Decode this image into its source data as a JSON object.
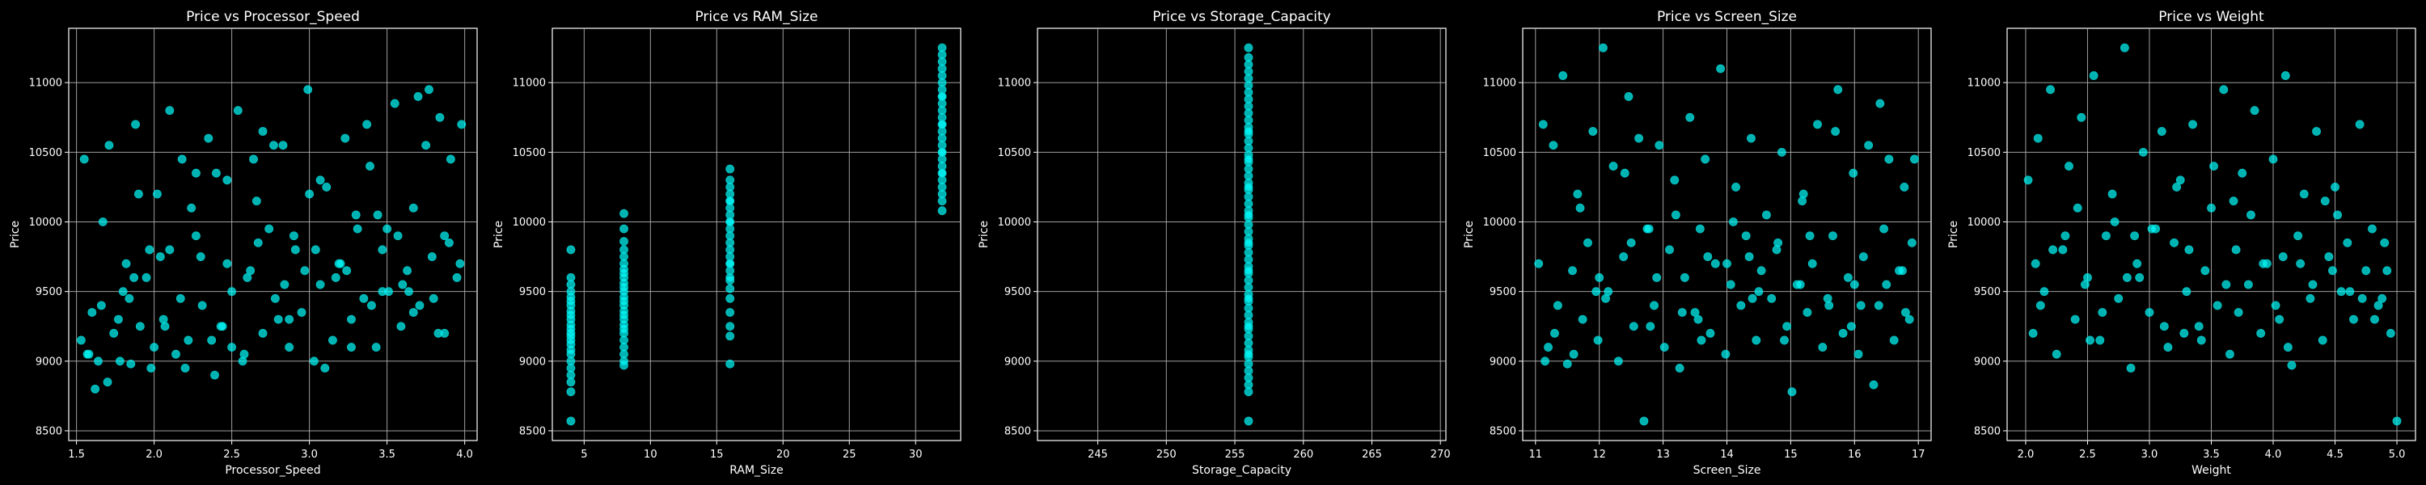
{
  "figure": {
    "background": "#000000",
    "marker_color": "#00ffff",
    "text_color": "#ffffff",
    "grid_color": "#b0b0b0"
  },
  "chart_data": [
    {
      "type": "scatter",
      "title": "Price vs Processor_Speed",
      "xlabel": "Processor_Speed",
      "ylabel": "Price",
      "xlim": [
        1.45,
        4.08
      ],
      "ylim": [
        8430,
        11390
      ],
      "xticks": [
        "1.5",
        "2.0",
        "2.5",
        "3.0",
        "3.5",
        "4.0"
      ],
      "yticks": [
        "8500",
        "9000",
        "9500",
        "10000",
        "10500",
        "11000"
      ],
      "grid": true,
      "x": [
        1.53,
        1.55,
        1.58,
        1.62,
        1.66,
        1.71,
        1.74,
        1.78,
        1.82,
        1.85,
        1.88,
        1.91,
        1.95,
        1.98,
        2.02,
        2.06,
        2.1,
        2.14,
        2.18,
        2.22,
        2.27,
        2.31,
        2.35,
        2.39,
        2.43,
        2.47,
        2.5,
        2.54,
        2.58,
        2.62,
        2.66,
        2.7,
        2.74,
        2.78,
        2.83,
        2.87,
        2.91,
        2.95,
        2.99,
        3.03,
        3.07,
        3.11,
        3.15,
        3.19,
        3.23,
        3.27,
        3.31,
        3.35,
        3.39,
        3.43,
        3.47,
        3.51,
        3.55,
        3.59,
        3.63,
        3.67,
        3.71,
        3.75,
        3.79,
        3.83,
        3.87,
        3.91,
        3.95,
        3.98,
        1.6,
        1.7,
        1.8,
        1.9,
        2.0,
        2.1,
        2.2,
        2.3,
        2.4,
        2.5,
        2.6,
        2.7,
        2.8,
        2.9,
        3.0,
        3.1,
        3.2,
        3.3,
        3.4,
        3.5,
        3.6,
        3.7,
        3.8,
        3.9,
        1.57,
        1.67,
        1.77,
        1.87,
        1.97,
        2.07,
        2.17,
        2.27,
        2.37,
        2.47,
        2.57,
        2.67,
        2.77,
        2.87,
        2.97,
        3.07,
        3.17,
        3.27,
        3.37,
        3.47,
        3.57,
        3.67,
        3.77,
        3.87,
        3.97,
        1.64,
        1.84,
        2.04,
        2.24,
        2.44,
        2.64,
        2.84,
        3.04,
        3.24,
        3.44,
        3.64,
        3.84
      ],
      "y": [
        9150,
        10450,
        9050,
        8800,
        9400,
        10550,
        9200,
        9000,
        9700,
        8980,
        10700,
        9250,
        9600,
        8950,
        10200,
        9300,
        9800,
        9050,
        10450,
        9150,
        9900,
        9400,
        10600,
        8900,
        9250,
        10300,
        9500,
        10800,
        9050,
        9650,
        10150,
        9200,
        9950,
        9450,
        10550,
        9100,
        9800,
        9350,
        10950,
        9000,
        9550,
        10250,
        9150,
        9700,
        10600,
        9300,
        9950,
        9450,
        10400,
        9100,
        9800,
        9500,
        10850,
        9250,
        9650,
        10100,
        9400,
        10550,
        9750,
        9200,
        9900,
        10450,
        9600,
        10700,
        9350,
        8850,
        9500,
        10200,
        9100,
        10800,
        8950,
        9750,
        10350,
        9100,
        9600,
        10650,
        9300,
        9900,
        10200,
        8950,
        9700,
        10050,
        9400,
        9950,
        9550,
        10900,
        9450,
        9850,
        9050,
        10000,
        9300,
        9600,
        9800,
        9250,
        9450,
        10350,
        9150,
        9700,
        9000,
        9850,
        10550,
        9300,
        9650,
        10300,
        9600,
        9100,
        10700,
        9500,
        9900,
        9350,
        10950,
        9200,
        9700,
        9000,
        9450,
        9750,
        10100,
        9250,
        10450,
        9550,
        9800,
        9650,
        10050,
        9500,
        10750
      ]
    },
    {
      "type": "scatter",
      "title": "Price vs RAM_Size",
      "xlabel": "RAM_Size",
      "ylabel": "Price",
      "xlim": [
        2.6,
        33.4
      ],
      "ylim": [
        8430,
        11390
      ],
      "xticks": [
        "5",
        "10",
        "15",
        "20",
        "25",
        "30"
      ],
      "yticks": [
        "8500",
        "9000",
        "9500",
        "10000",
        "10500",
        "11000"
      ],
      "grid": true,
      "x": [
        4,
        4,
        4,
        4,
        4,
        4,
        4,
        4,
        4,
        4,
        4,
        4,
        4,
        4,
        4,
        4,
        4,
        4,
        4,
        4,
        4,
        4,
        4,
        4,
        8,
        8,
        8,
        8,
        8,
        8,
        8,
        8,
        8,
        8,
        8,
        8,
        8,
        8,
        8,
        8,
        8,
        8,
        8,
        8,
        8,
        8,
        8,
        8,
        8,
        8,
        16,
        16,
        16,
        16,
        16,
        16,
        16,
        16,
        16,
        16,
        16,
        16,
        16,
        16,
        16,
        16,
        16,
        16,
        16,
        16,
        16,
        16,
        16,
        16,
        16,
        16,
        32,
        32,
        32,
        32,
        32,
        32,
        32,
        32,
        32,
        32,
        32,
        32,
        32,
        32,
        32,
        32,
        32,
        32,
        32,
        32,
        32,
        32,
        32,
        32,
        32,
        32,
        32,
        32
      ],
      "y": [
        8570,
        8780,
        8850,
        8900,
        8950,
        9000,
        9050,
        9080,
        9120,
        9150,
        9180,
        9200,
        9230,
        9260,
        9300,
        9330,
        9360,
        9400,
        9430,
        9460,
        9500,
        9550,
        9600,
        9800,
        8970,
        9000,
        9050,
        9100,
        9150,
        9200,
        9230,
        9260,
        9300,
        9330,
        9360,
        9400,
        9430,
        9460,
        9500,
        9530,
        9560,
        9600,
        9630,
        9660,
        9700,
        9750,
        9800,
        9860,
        9950,
        10060,
        8980,
        9180,
        9250,
        9350,
        9450,
        9520,
        9580,
        9650,
        9700,
        9750,
        9800,
        9850,
        9900,
        9950,
        10000,
        10050,
        10100,
        10150,
        10200,
        10250,
        10300,
        10380,
        9600,
        9700,
        10000,
        10150,
        10080,
        10150,
        10250,
        10300,
        10350,
        10400,
        10450,
        10500,
        10550,
        10600,
        10650,
        10700,
        10750,
        10800,
        10850,
        10900,
        10950,
        11000,
        11050,
        11100,
        11150,
        11200,
        11250,
        10200,
        10350,
        10500,
        10700,
        10900
      ]
    },
    {
      "type": "scatter",
      "title": "Price vs Storage_Capacity",
      "xlabel": "Storage_Capacity",
      "ylabel": "Price",
      "xlim": [
        240.6,
        270.4
      ],
      "ylim": [
        8430,
        11390
      ],
      "xticks": [
        "245",
        "250",
        "255",
        "260",
        "265",
        "270"
      ],
      "yticks": [
        "8500",
        "9000",
        "9500",
        "10000",
        "10500",
        "11000"
      ],
      "grid": true,
      "x": [
        256,
        256,
        256,
        256,
        256,
        256,
        256,
        256,
        256,
        256,
        256,
        256,
        256,
        256,
        256,
        256,
        256,
        256,
        256,
        256,
        256,
        256,
        256,
        256,
        256,
        256,
        256,
        256,
        256,
        256,
        256,
        256,
        256,
        256,
        256,
        256,
        256,
        256,
        256,
        256,
        256,
        256,
        256,
        256,
        256,
        256,
        256,
        256,
        256,
        256,
        256,
        256,
        256,
        256,
        256,
        256,
        256,
        256,
        256,
        256
      ],
      "y": [
        8570,
        8780,
        8830,
        8880,
        8930,
        8980,
        9030,
        9080,
        9130,
        9180,
        9230,
        9280,
        9330,
        9380,
        9430,
        9480,
        9530,
        9580,
        9630,
        9680,
        9730,
        9780,
        9830,
        9880,
        9930,
        9980,
        10030,
        10080,
        10130,
        10180,
        10230,
        10280,
        10330,
        10380,
        10430,
        10480,
        10530,
        10580,
        10630,
        10680,
        10730,
        10780,
        10830,
        10880,
        10930,
        10980,
        11030,
        11080,
        11130,
        11180,
        11250,
        9050,
        9250,
        9450,
        9650,
        9850,
        10050,
        10250,
        10450,
        10650
      ]
    },
    {
      "type": "scatter",
      "title": "Price vs Screen_Size",
      "xlabel": "Screen_Size",
      "ylabel": "Price",
      "xlim": [
        10.8,
        17.2
      ],
      "ylim": [
        8430,
        11390
      ],
      "xticks": [
        "11",
        "12",
        "13",
        "14",
        "15",
        "16",
        "17"
      ],
      "yticks": [
        "8500",
        "9000",
        "9500",
        "10000",
        "10500",
        "11000"
      ],
      "grid": true,
      "x": [
        11.05,
        11.12,
        11.2,
        11.28,
        11.35,
        11.43,
        11.5,
        11.58,
        11.66,
        11.74,
        11.82,
        11.9,
        11.98,
        12.06,
        12.14,
        12.22,
        12.3,
        12.38,
        12.46,
        12.54,
        12.62,
        12.7,
        12.78,
        12.86,
        12.94,
        13.02,
        13.1,
        13.18,
        13.26,
        13.34,
        13.42,
        13.5,
        13.58,
        13.66,
        13.74,
        13.82,
        13.9,
        13.98,
        14.06,
        14.14,
        14.22,
        14.3,
        14.38,
        14.46,
        14.54,
        14.62,
        14.7,
        14.78,
        14.86,
        14.94,
        15.02,
        15.1,
        15.18,
        15.26,
        15.34,
        15.42,
        15.5,
        15.58,
        15.66,
        15.74,
        15.82,
        15.9,
        15.98,
        16.06,
        16.14,
        16.22,
        16.3,
        16.38,
        16.46,
        16.54,
        16.62,
        16.7,
        16.78,
        16.86,
        16.94,
        11.3,
        11.7,
        12.1,
        12.5,
        12.9,
        13.3,
        13.7,
        14.1,
        14.5,
        14.9,
        15.3,
        15.7,
        16.1,
        16.5,
        16.9,
        11.6,
        12.0,
        12.4,
        12.8,
        13.2,
        13.6,
        14.0,
        14.4,
        14.8,
        15.2,
        15.6,
        16.0,
        16.4,
        16.8,
        11.15,
        11.95,
        12.75,
        13.55,
        14.35,
        15.15,
        15.95,
        16.75
      ],
      "y": [
        9700,
        10700,
        9100,
        10550,
        9400,
        11050,
        8980,
        9650,
        10200,
        9300,
        9850,
        10650,
        9150,
        11250,
        9500,
        10400,
        9000,
        9750,
        10900,
        9250,
        10600,
        8570,
        9950,
        9400,
        10550,
        9100,
        9800,
        10300,
        8950,
        9600,
        10750,
        9350,
        9950,
        10450,
        9200,
        9700,
        11100,
        9050,
        9550,
        10250,
        9400,
        9900,
        10600,
        9150,
        9650,
        10050,
        9450,
        9800,
        10500,
        9250,
        8780,
        9550,
        10150,
        9350,
        9700,
        10700,
        9100,
        9450,
        9900,
        10950,
        9200,
        9600,
        10350,
        9050,
        9750,
        10550,
        8830,
        9400,
        9950,
        10450,
        9150,
        9650,
        10250,
        9300,
        10450,
        9200,
        10100,
        9450,
        9850,
        9600,
        9350,
        9750,
        10000,
        9500,
        9150,
        9900,
        10650,
        9400,
        9550,
        9850,
        9050,
        9600,
        10350,
        9250,
        10050,
        9150,
        9700,
        9450,
        9850,
        10200,
        9400,
        9550,
        10850,
        9350,
        9000,
        9500,
        9950,
        9300,
        9750,
        9550,
        9250,
        9650
      ]
    },
    {
      "type": "scatter",
      "title": "Price vs Weight",
      "xlabel": "Weight",
      "ylabel": "Price",
      "xlim": [
        1.85,
        5.15
      ],
      "ylim": [
        8430,
        11390
      ],
      "xticks": [
        "2.0",
        "2.5",
        "3.0",
        "3.5",
        "4.0",
        "4.5",
        "5.0"
      ],
      "yticks": [
        "8500",
        "9000",
        "9500",
        "10000",
        "10500",
        "11000"
      ],
      "grid": true,
      "x": [
        2.02,
        2.06,
        2.1,
        2.15,
        2.2,
        2.25,
        2.3,
        2.35,
        2.4,
        2.45,
        2.5,
        2.55,
        2.6,
        2.65,
        2.7,
        2.75,
        2.8,
        2.85,
        2.9,
        2.95,
        3.0,
        3.05,
        3.1,
        3.15,
        3.2,
        3.25,
        3.3,
        3.35,
        3.4,
        3.45,
        3.5,
        3.55,
        3.6,
        3.65,
        3.7,
        3.75,
        3.8,
        3.85,
        3.9,
        3.95,
        4.0,
        4.05,
        4.1,
        4.15,
        4.2,
        4.25,
        4.3,
        4.35,
        4.4,
        4.45,
        4.5,
        4.55,
        4.6,
        4.65,
        4.7,
        4.75,
        4.8,
        4.85,
        4.9,
        4.95,
        5.0,
        2.12,
        2.32,
        2.52,
        2.72,
        2.92,
        3.12,
        3.32,
        3.52,
        3.72,
        3.92,
        4.12,
        4.32,
        4.52,
        4.72,
        4.92,
        2.22,
        2.42,
        2.62,
        2.82,
        3.02,
        3.22,
        3.42,
        3.62,
        3.82,
        4.02,
        4.22,
        4.42,
        4.62,
        4.82,
        2.08,
        2.48,
        2.88,
        3.28,
        3.68,
        4.08,
        4.48,
        4.88
      ],
      "y": [
        10300,
        9200,
        10600,
        9500,
        10950,
        9050,
        9800,
        10400,
        9300,
        10750,
        9600,
        11050,
        9150,
        9900,
        10200,
        9450,
        11250,
        8950,
        9700,
        10500,
        9350,
        9950,
        10650,
        9100,
        9850,
        10300,
        9500,
        10700,
        9250,
        9650,
        10100,
        9400,
        10950,
        9050,
        9800,
        10350,
        9550,
        10800,
        9200,
        9700,
        10450,
        9300,
        11050,
        8970,
        9900,
        10200,
        9450,
        10650,
        9150,
        9750,
        10250,
        9500,
        9850,
        9300,
        10700,
        9650,
        9950,
        9400,
        9850,
        9200,
        8570,
        9400,
        9900,
        9150,
        10000,
        9600,
        9250,
        9800,
        10400,
        9350,
        9700,
        9100,
        9550,
        10050,
        9450,
        9650,
        9800,
        10100,
        9350,
        9600,
        9950,
        10250,
        9150,
        9550,
        10050,
        9400,
        9700,
        10150,
        9500,
        9300,
        9700,
        9550,
        9900,
        9200,
        10150,
        9750,
        9650,
        9450
      ]
    }
  ]
}
